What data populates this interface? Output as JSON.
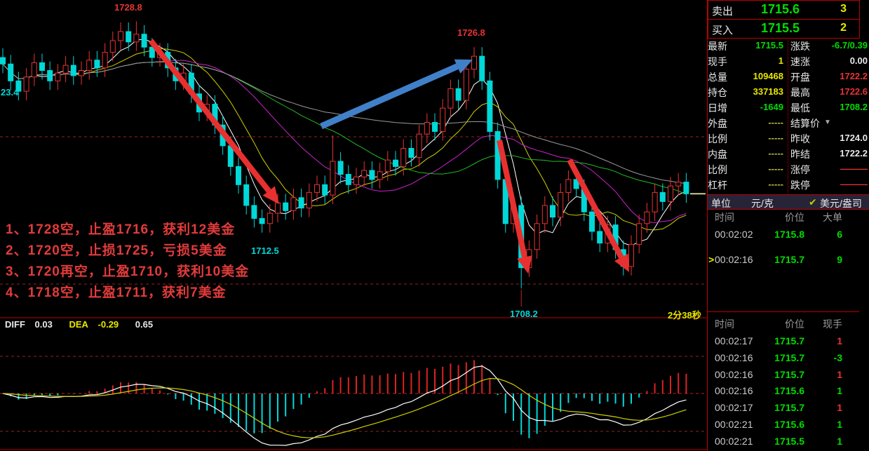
{
  "colors": {
    "up_candle": "#e83333",
    "down_candle": "#00d8d8",
    "green": "#00dd00",
    "yellow": "#e8e800",
    "red": "#e83333",
    "panel_border": "#bb0000",
    "blue_arrow": "#4080c8",
    "red_arrow": "#e83030",
    "ma_white": "#ffffff",
    "ma_yellow": "#cfcf00",
    "ma_magenta": "#cc22cc",
    "ma_green": "#22bb22",
    "ma_gray": "#9a9a9a"
  },
  "order_book": {
    "sell_label": "卖出",
    "sell_price": "1715.6",
    "sell_qty": "3",
    "buy_label": "买入",
    "buy_price": "1715.5",
    "buy_qty": "2"
  },
  "quote_left": [
    {
      "label": "最新",
      "value": "1715.5",
      "cls": "c-green"
    },
    {
      "label": "现手",
      "value": "1",
      "cls": "c-yellow"
    },
    {
      "label": "总量",
      "value": "109468",
      "cls": "c-yellow"
    },
    {
      "label": "持仓",
      "value": "337183",
      "cls": "c-yellow"
    },
    {
      "label": "日增",
      "value": "-1649",
      "cls": "c-green"
    },
    {
      "label": "外盘",
      "value": "-----",
      "cls": "c-dash"
    },
    {
      "label": "比例",
      "value": "-----",
      "cls": "c-dash"
    },
    {
      "label": "内盘",
      "value": "-----",
      "cls": "c-dash"
    },
    {
      "label": "比例",
      "value": "-----",
      "cls": "c-dash"
    },
    {
      "label": "杠杆",
      "value": "-----",
      "cls": "c-dash"
    }
  ],
  "quote_right": [
    {
      "label": "涨跌",
      "value": "-6.7/0.39",
      "cls": "c-green",
      "arrow": false
    },
    {
      "label": "速涨",
      "value": "0.00",
      "cls": "c-white",
      "arrow": false
    },
    {
      "label": "开盘",
      "value": "1722.2",
      "cls": "c-red",
      "arrow": false
    },
    {
      "label": "最高",
      "value": "1722.6",
      "cls": "c-red",
      "arrow": false
    },
    {
      "label": "最低",
      "value": "1708.2",
      "cls": "c-green",
      "arrow": false
    },
    {
      "label": "结算价",
      "value": "",
      "cls": "c-white",
      "arrow": true
    },
    {
      "label": "昨收",
      "value": "1724.0",
      "cls": "c-white",
      "arrow": false
    },
    {
      "label": "昨结",
      "value": "1722.2",
      "cls": "c-white",
      "arrow": false
    },
    {
      "label": "涨停",
      "value": "———",
      "cls": "c-red",
      "arrow": false
    },
    {
      "label": "跌停",
      "value": "———",
      "cls": "c-red",
      "arrow": false
    }
  ],
  "unit_row": {
    "label": "单位",
    "unit_cn": "元/克",
    "check": "✔",
    "unit_us": "美元/盎司"
  },
  "big_order_table": {
    "headers": [
      "时间",
      "价位",
      "大单"
    ],
    "rows": [
      {
        "marker": "",
        "time": "00:02:02",
        "price": "1715.8",
        "qty": "6",
        "qty_cls": "c-green"
      },
      {
        "marker": ">",
        "time": "00:02:16",
        "price": "1715.7",
        "qty": "9",
        "qty_cls": "c-green"
      }
    ]
  },
  "tick_table": {
    "headers": [
      "时间",
      "价位",
      "现手"
    ],
    "rows": [
      {
        "time": "00:02:17",
        "price": "1715.7",
        "qty": "1",
        "qty_cls": "c-red"
      },
      {
        "time": "00:02:16",
        "price": "1715.7",
        "qty": "-3",
        "qty_cls": "c-green"
      },
      {
        "time": "00:02:16",
        "price": "1715.7",
        "qty": "1",
        "qty_cls": "c-red"
      },
      {
        "time": "00:02:16",
        "price": "1715.6",
        "qty": "1",
        "qty_cls": "c-green"
      },
      {
        "time": "00:02:17",
        "price": "1715.7",
        "qty": "1",
        "qty_cls": "c-red"
      },
      {
        "time": "00:02:21",
        "price": "1715.6",
        "qty": "1",
        "qty_cls": "c-green"
      },
      {
        "time": "00:02:21",
        "price": "1715.5",
        "qty": "1",
        "qty_cls": "c-green"
      }
    ]
  },
  "annotations": {
    "notes": [
      "1、1728空，止盈1716，获利12美金",
      "2、1720空，止损1725，亏损5美金",
      "3、1720再空，止盈1710，获利10美金",
      "4、1718空，止盈1711，获利7美金"
    ],
    "countdown": "2分38秒"
  },
  "macd_readout": {
    "diff_label": "DIFF",
    "diff": "0.03",
    "dea_label": "DEA",
    "dea": "-0.29",
    "macd": "0.65"
  },
  "chart_data": {
    "type": "candlestick",
    "title": "",
    "ylim": [
      1706.5,
      1730
    ],
    "price_labels": [
      {
        "text": "1728.8",
        "color": "#e83333",
        "x": 163,
        "y": 3
      },
      {
        "text": "23.4",
        "color": "#00d8d8",
        "x": 1,
        "y": 124
      },
      {
        "text": "1726.8",
        "color": "#e83333",
        "x": 652,
        "y": 39
      },
      {
        "text": "1712.5",
        "color": "#00d8d8",
        "x": 358,
        "y": 350
      },
      {
        "text": "1708.2",
        "color": "#00d8d8",
        "x": 727,
        "y": 440
      }
    ],
    "closes": [
      1725.5,
      1724.2,
      1723.4,
      1724.5,
      1725.6,
      1725.0,
      1724.2,
      1724.8,
      1725.4,
      1724.6,
      1725.0,
      1725.8,
      1725.2,
      1726.4,
      1727.3,
      1728.0,
      1727.2,
      1727.8,
      1726.8,
      1726.0,
      1726.4,
      1725.2,
      1724.2,
      1724.8,
      1723.2,
      1721.8,
      1722.4,
      1720.8,
      1719.2,
      1717.6,
      1716.2,
      1714.6,
      1713.6,
      1713.2,
      1714.0,
      1714.8,
      1714.2,
      1715.2,
      1714.4,
      1715.6,
      1716.2,
      1715.4,
      1718.0,
      1717.0,
      1716.2,
      1716.8,
      1717.3,
      1716.6,
      1717.2,
      1718.1,
      1717.6,
      1719.0,
      1718.3,
      1720.1,
      1721.0,
      1720.3,
      1722.1,
      1723.6,
      1722.7,
      1725.1,
      1726.1,
      1724.2,
      1720.3,
      1716.6,
      1713.2,
      1714.6,
      1709.8,
      1711.2,
      1713.2,
      1714.6,
      1713.7,
      1715.6,
      1716.6,
      1715.9,
      1714.1,
      1712.6,
      1711.7,
      1713.1,
      1711.2,
      1709.9,
      1711.6,
      1713.2,
      1714.1,
      1715.6,
      1714.9,
      1716.1,
      1716.4,
      1715.5
    ],
    "overrides": {
      "17": {
        "high": 1728.8
      },
      "33": {
        "low": 1712.5
      },
      "42": {
        "high": 1720.0
      },
      "60": {
        "high": 1726.8
      },
      "66": {
        "low": 1708.2
      }
    },
    "ma_periods": [
      5,
      10,
      20,
      30,
      60
    ],
    "arrows": [
      {
        "color": "red",
        "from": [
          215,
          58
        ],
        "to": [
          398,
          291
        ]
      },
      {
        "color": "red",
        "from": [
          712,
          200
        ],
        "to": [
          753,
          390
        ]
      },
      {
        "color": "red",
        "from": [
          812,
          228
        ],
        "to": [
          897,
          388
        ]
      },
      {
        "color": "blue",
        "from": [
          458,
          180
        ],
        "to": [
          674,
          85
        ]
      }
    ],
    "macd": {
      "diff": 0.03,
      "dea": -0.29,
      "macd": 0.65
    }
  }
}
